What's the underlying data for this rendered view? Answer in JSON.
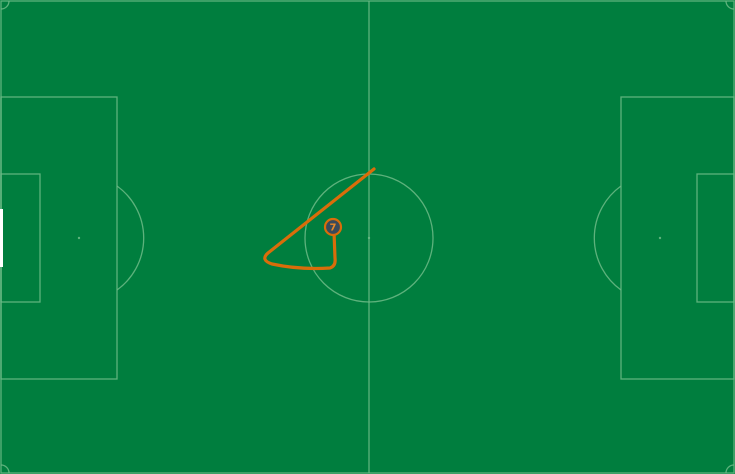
{
  "colors": {
    "pitch": "#007e3e",
    "lines": "#6dbb87",
    "trail": "#d96d0a",
    "player_fill": "#3a4a5a",
    "player_ring": "#d96d0a",
    "player_text": "#e88a2a"
  },
  "player": {
    "number": "7"
  }
}
